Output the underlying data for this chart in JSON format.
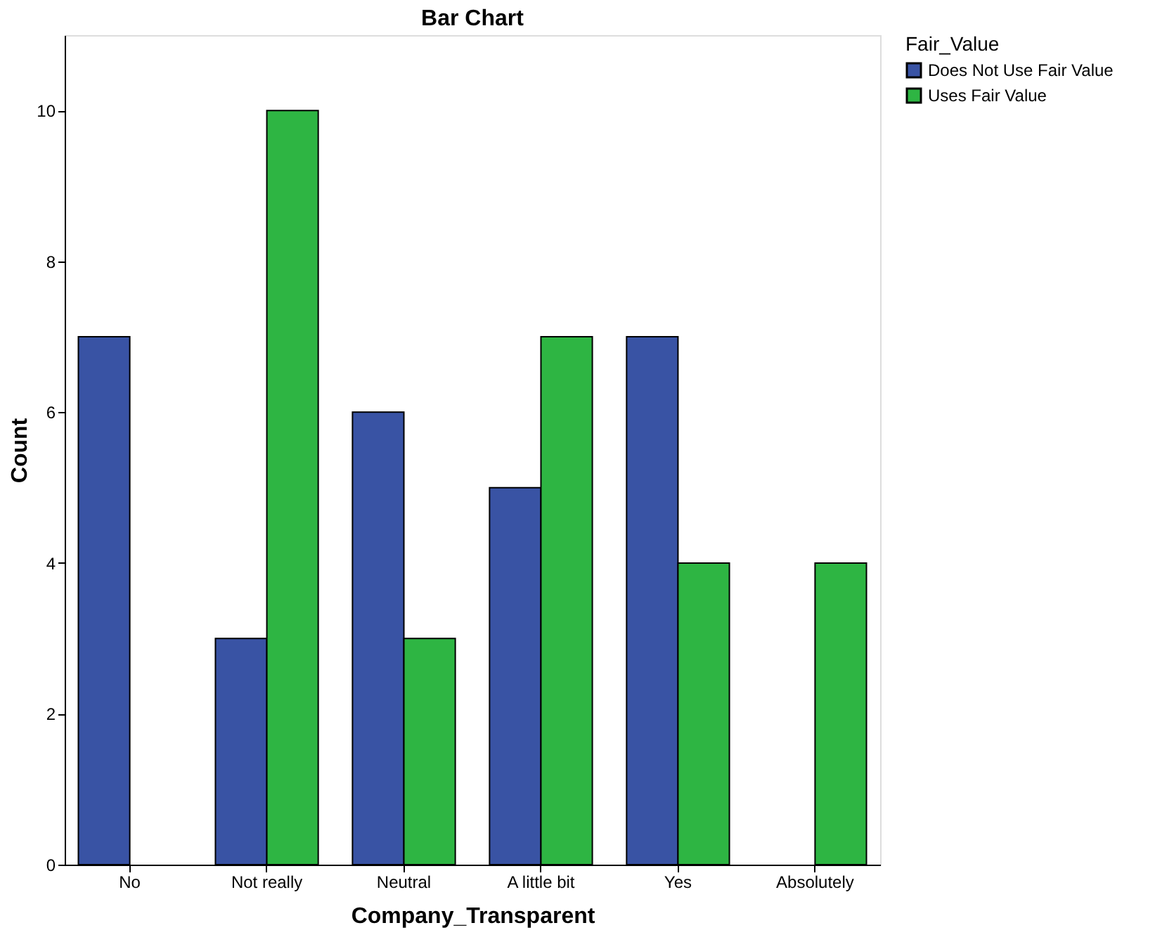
{
  "chart_data": {
    "type": "bar",
    "title": "Bar Chart",
    "xlabel": "Company_Transparent",
    "ylabel": "Count",
    "legend_title": "Fair_Value",
    "categories": [
      "No",
      "Not really",
      "Neutral",
      "A little bit",
      "Yes",
      "Absolutely"
    ],
    "series": [
      {
        "name": "Does Not Use Fair Value",
        "color": "#3953a4",
        "values": [
          7,
          3,
          6,
          5,
          7,
          null
        ]
      },
      {
        "name": "Uses Fair Value",
        "color": "#2eb543",
        "values": [
          null,
          10,
          3,
          7,
          4,
          4
        ]
      }
    ],
    "ylim": [
      0,
      11
    ],
    "yticks": [
      0,
      2,
      4,
      6,
      8,
      10
    ],
    "grid": false,
    "legend": "top right"
  }
}
